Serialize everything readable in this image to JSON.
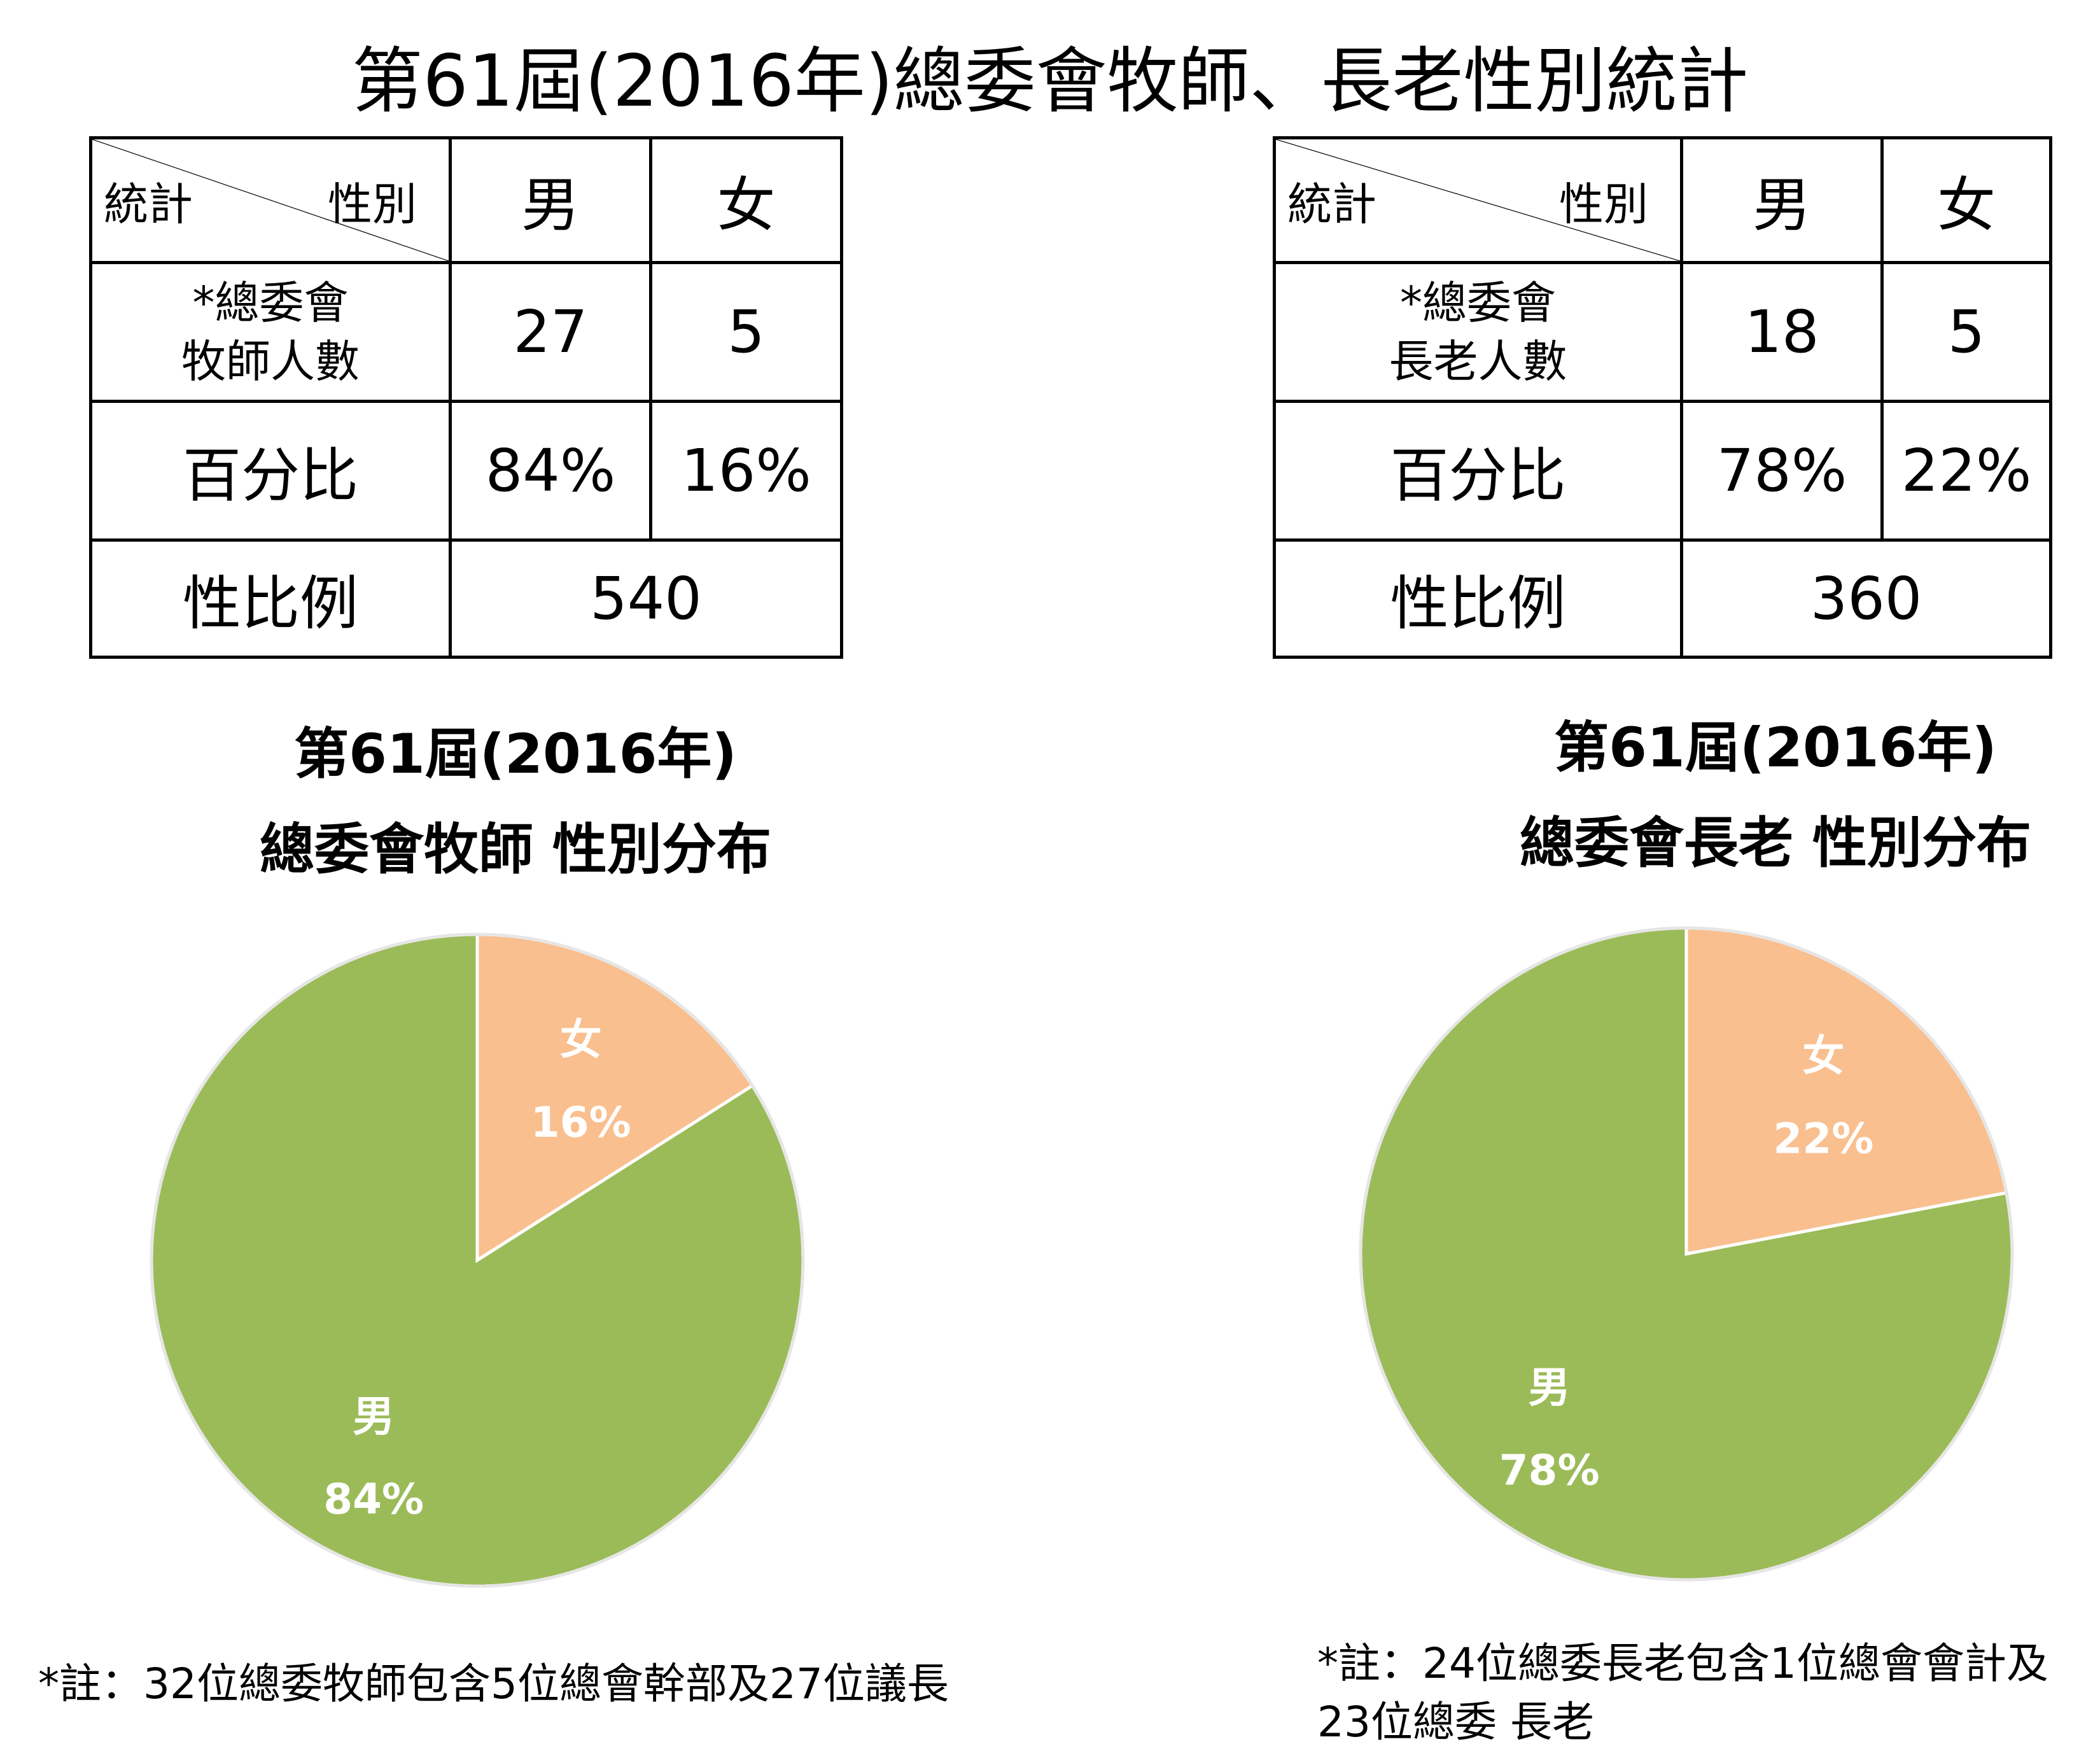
{
  "title": "第61屆(2016年)總委會牧師、長老性別統計",
  "tables": [
    {
      "corner_left": "統計",
      "corner_right": "性別",
      "col_male": "男",
      "col_female": "女",
      "row_count_label_1": "*總委會",
      "row_count_label_2": "牧師人數",
      "count_male": "27",
      "count_female": "5",
      "row_percent_label": "百分比",
      "percent_male": "84%",
      "percent_female": "16%",
      "row_ratio_label": "性比例",
      "ratio": "540"
    },
    {
      "corner_left": "統計",
      "corner_right": "性別",
      "col_male": "男",
      "col_female": "女",
      "row_count_label_1": "*總委會",
      "row_count_label_2": "長老人數",
      "count_male": "18",
      "count_female": "5",
      "row_percent_label": "百分比",
      "percent_male": "78%",
      "percent_female": "22%",
      "row_ratio_label": "性比例",
      "ratio": "360"
    }
  ],
  "chart_data": [
    {
      "type": "pie",
      "title_line1": "第61屆(2016年)",
      "title_line2": "總委會牧師 性別分布",
      "slices": [
        {
          "label": "女",
          "percent_label": "16%",
          "value": 16,
          "color": "#F9BF8F"
        },
        {
          "label": "男",
          "percent_label": "84%",
          "value": 84,
          "color": "#9BBB59"
        }
      ]
    },
    {
      "type": "pie",
      "title_line1": "第61屆(2016年)",
      "title_line2": "總委會長老 性別分布",
      "slices": [
        {
          "label": "女",
          "percent_label": "22%",
          "value": 22,
          "color": "#F9BF8F"
        },
        {
          "label": "男",
          "percent_label": "78%",
          "value": 78,
          "color": "#9BBB59"
        }
      ]
    }
  ],
  "footnotes": [
    "*註：32位總委牧師包含5位總會幹部及27位議長",
    "*註：24位總委長老包含1位總會會計及23位總委 長老"
  ]
}
